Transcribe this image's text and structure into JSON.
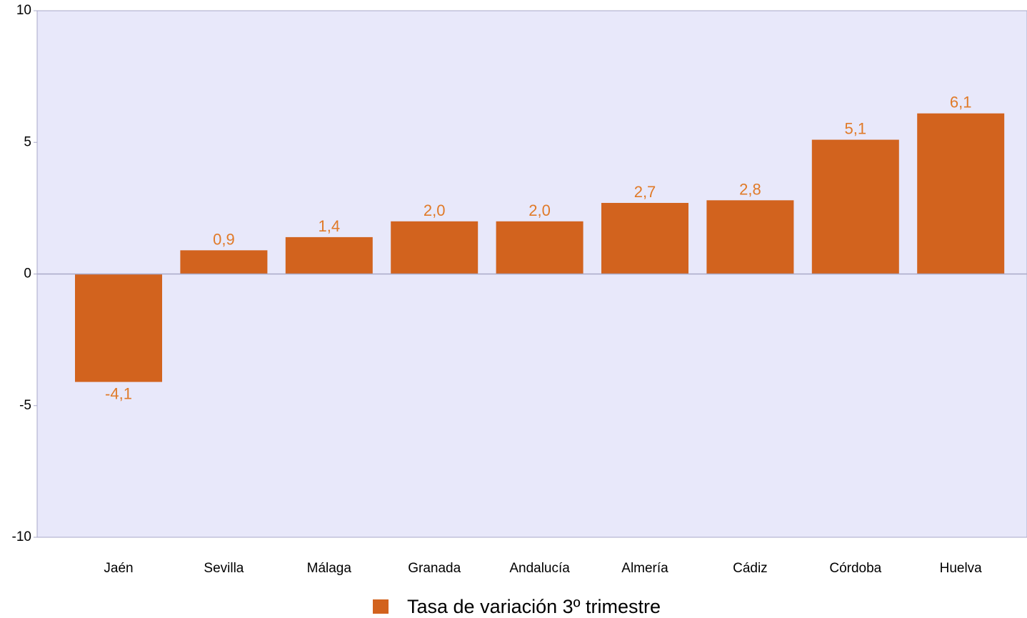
{
  "chart_data": {
    "type": "bar",
    "categories": [
      "Jaén",
      "Sevilla",
      "Málaga",
      "Granada",
      "Andalucía",
      "Almería",
      "Cádiz",
      "Córdoba",
      "Huelva"
    ],
    "series": [
      {
        "name": "Tasa de variación 3º trimestre",
        "values": [
          -4.1,
          0.9,
          1.4,
          2.0,
          2.0,
          2.7,
          2.8,
          5.1,
          6.1
        ],
        "labels": [
          "-4,1",
          "0,9",
          "1,4",
          "2,0",
          "2,0",
          "2,7",
          "2,8",
          "5,1",
          "6,1"
        ]
      }
    ],
    "title": "",
    "xlabel": "",
    "ylabel": "",
    "ylim": [
      -10,
      10
    ],
    "yticks": [
      10,
      5,
      0,
      -5,
      -10
    ],
    "grid": false,
    "legend_position": "bottom-center"
  },
  "colors": {
    "bar": "#D2631E",
    "data_label": "#E07A28",
    "plot_background": "#E8E8FA",
    "axis": "#A9A9C8"
  }
}
